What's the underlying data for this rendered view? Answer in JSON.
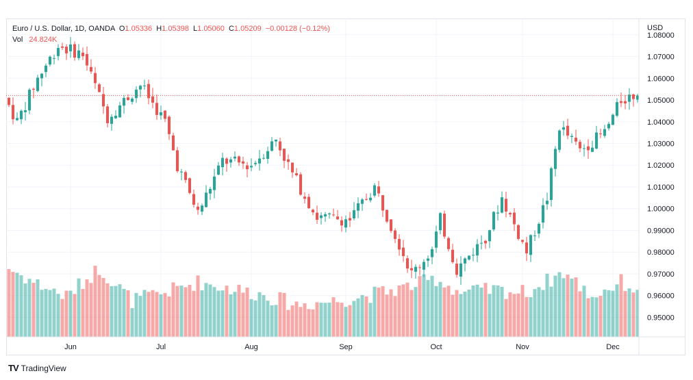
{
  "chart_data": {
    "type": "candlestick",
    "title": "Euro / U.S. Dollar, 1D, OANDA",
    "legend": {
      "open_label": "O",
      "open": "1.05336",
      "high_label": "H",
      "high": "1.05398",
      "low_label": "L",
      "low": "1.05060",
      "close_label": "C",
      "close": "1.05209",
      "change": "−0.00128 (−0.12%)",
      "volume_label": "Vol",
      "volume": "24.824K"
    },
    "y_unit": "USD",
    "ylim": [
      0.941,
      1.0875
    ],
    "y_ticks": [
      {
        "value": 1.08,
        "label": "1.08000"
      },
      {
        "value": 1.07,
        "label": "1.07000"
      },
      {
        "value": 1.06,
        "label": "1.06000"
      },
      {
        "value": 1.05,
        "label": "1.05000"
      },
      {
        "value": 1.04,
        "label": "1.04000"
      },
      {
        "value": 1.03,
        "label": "1.03000"
      },
      {
        "value": 1.02,
        "label": "1.02000"
      },
      {
        "value": 1.01,
        "label": "1.01000"
      },
      {
        "value": 1.0,
        "label": "1.00000"
      },
      {
        "value": 0.99,
        "label": "0.99000"
      },
      {
        "value": 0.98,
        "label": "0.98000"
      },
      {
        "value": 0.97,
        "label": "0.97000"
      },
      {
        "value": 0.96,
        "label": "0.96000"
      },
      {
        "value": 0.95,
        "label": "0.95000"
      }
    ],
    "x_ticks": [
      {
        "index": 15,
        "label": "Jun"
      },
      {
        "index": 37,
        "label": "Jul"
      },
      {
        "index": 59,
        "label": "Aug"
      },
      {
        "index": 82,
        "label": "Sep"
      },
      {
        "index": 104,
        "label": "Oct"
      },
      {
        "index": 125,
        "label": "Nov"
      },
      {
        "index": 147,
        "label": "Dec"
      }
    ],
    "last_price": 1.0521,
    "grid": true,
    "up_color": "#26a69a",
    "down_color": "#ef5350",
    "anchors": [
      [
        0,
        1.051
      ],
      [
        3,
        1.04
      ],
      [
        8,
        1.06
      ],
      [
        13,
        1.075
      ],
      [
        19,
        1.071
      ],
      [
        25,
        1.042
      ],
      [
        33,
        1.057
      ],
      [
        39,
        1.04
      ],
      [
        42,
        1.02
      ],
      [
        47,
        0.998
      ],
      [
        53,
        1.022
      ],
      [
        60,
        1.02
      ],
      [
        66,
        1.032
      ],
      [
        70,
        1.016
      ],
      [
        76,
        0.996
      ],
      [
        84,
        0.995
      ],
      [
        90,
        1.01
      ],
      [
        96,
        0.984
      ],
      [
        99,
        0.97
      ],
      [
        104,
        0.981
      ],
      [
        106,
        0.995
      ],
      [
        110,
        0.972
      ],
      [
        117,
        0.987
      ],
      [
        121,
        1.005
      ],
      [
        127,
        0.98
      ],
      [
        132,
        1.005
      ],
      [
        135,
        1.038
      ],
      [
        140,
        1.027
      ],
      [
        146,
        1.035
      ],
      [
        150,
        1.05
      ],
      [
        153,
        1.0521
      ]
    ],
    "volume_anchors": [
      [
        0,
        0.85
      ],
      [
        6,
        0.68
      ],
      [
        14,
        0.5
      ],
      [
        22,
        0.85
      ],
      [
        30,
        0.45
      ],
      [
        38,
        0.55
      ],
      [
        46,
        0.68
      ],
      [
        54,
        0.6
      ],
      [
        62,
        0.52
      ],
      [
        70,
        0.4
      ],
      [
        80,
        0.45
      ],
      [
        88,
        0.52
      ],
      [
        97,
        0.62
      ],
      [
        104,
        0.72
      ],
      [
        110,
        0.55
      ],
      [
        118,
        0.58
      ],
      [
        126,
        0.55
      ],
      [
        135,
        0.8
      ],
      [
        142,
        0.5
      ],
      [
        149,
        0.68
      ],
      [
        153,
        0.58
      ]
    ]
  },
  "brand": {
    "name": "TradingView",
    "logo": "TV"
  }
}
